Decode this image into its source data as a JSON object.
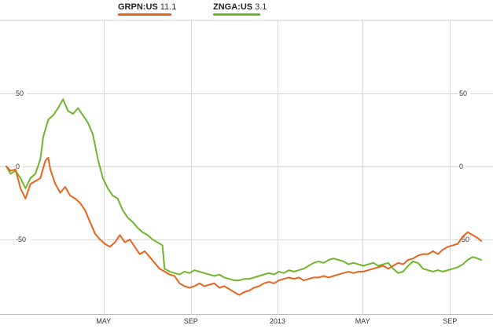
{
  "legend": {
    "items": [
      {
        "ticker": "GRPN:US",
        "value": "11.1",
        "color": "#e8641b"
      },
      {
        "ticker": "ZNGA:US",
        "value": "3.1",
        "color": "#6fb52c"
      }
    ]
  },
  "chart_data": {
    "type": "line",
    "title": "",
    "xlabel": "",
    "ylabel": "",
    "ylim": [
      -100,
      100
    ],
    "y_ticks": [
      50,
      0,
      -50
    ],
    "y_tick_labels": [
      "50",
      "0",
      "-50"
    ],
    "x_range": [
      "2011-12-16",
      "2013-10-15"
    ],
    "x_ticks": [
      "2012-05-01",
      "2012-09-01",
      "2013-01-01",
      "2013-05-01",
      "2013-09-01"
    ],
    "x_tick_labels": [
      "MAY",
      "SEP",
      "2013",
      "MAY",
      "SEP"
    ],
    "grid": true,
    "legend_position": "top-center",
    "series": [
      {
        "name": "GRPN:US",
        "color": "#e8641b",
        "last_value": "11.1",
        "points": [
          [
            "2011-12-16",
            0
          ],
          [
            "2011-12-22",
            -3
          ],
          [
            "2011-12-29",
            -2
          ],
          [
            "2012-01-05",
            -15
          ],
          [
            "2012-01-12",
            -22
          ],
          [
            "2012-01-19",
            -12
          ],
          [
            "2012-01-26",
            -10
          ],
          [
            "2012-02-02",
            -8
          ],
          [
            "2012-02-09",
            4
          ],
          [
            "2012-02-13",
            6
          ],
          [
            "2012-02-16",
            -2
          ],
          [
            "2012-02-23",
            -12
          ],
          [
            "2012-03-01",
            -18
          ],
          [
            "2012-03-08",
            -14
          ],
          [
            "2012-03-15",
            -20
          ],
          [
            "2012-03-22",
            -22
          ],
          [
            "2012-03-29",
            -25
          ],
          [
            "2012-04-05",
            -30
          ],
          [
            "2012-04-12",
            -38
          ],
          [
            "2012-04-19",
            -46
          ],
          [
            "2012-04-26",
            -50
          ],
          [
            "2012-05-03",
            -53
          ],
          [
            "2012-05-10",
            -55
          ],
          [
            "2012-05-17",
            -52
          ],
          [
            "2012-05-24",
            -47
          ],
          [
            "2012-05-31",
            -52
          ],
          [
            "2012-06-07",
            -50
          ],
          [
            "2012-06-14",
            -55
          ],
          [
            "2012-06-21",
            -60
          ],
          [
            "2012-06-28",
            -58
          ],
          [
            "2012-07-05",
            -62
          ],
          [
            "2012-07-12",
            -66
          ],
          [
            "2012-07-19",
            -70
          ],
          [
            "2012-07-26",
            -72
          ],
          [
            "2012-08-02",
            -74
          ],
          [
            "2012-08-09",
            -75
          ],
          [
            "2012-08-16",
            -80
          ],
          [
            "2012-08-23",
            -82
          ],
          [
            "2012-08-30",
            -83
          ],
          [
            "2012-09-06",
            -82
          ],
          [
            "2012-09-13",
            -80
          ],
          [
            "2012-09-20",
            -82
          ],
          [
            "2012-09-27",
            -81
          ],
          [
            "2012-10-04",
            -80
          ],
          [
            "2012-10-11",
            -83
          ],
          [
            "2012-10-18",
            -82
          ],
          [
            "2012-10-25",
            -84
          ],
          [
            "2012-11-01",
            -86
          ],
          [
            "2012-11-08",
            -88
          ],
          [
            "2012-11-15",
            -86
          ],
          [
            "2012-11-22",
            -85
          ],
          [
            "2012-11-29",
            -83
          ],
          [
            "2012-12-06",
            -82
          ],
          [
            "2012-12-13",
            -80
          ],
          [
            "2012-12-20",
            -79
          ],
          [
            "2012-12-27",
            -80
          ],
          [
            "2013-01-03",
            -78
          ],
          [
            "2013-01-10",
            -77
          ],
          [
            "2013-01-17",
            -76
          ],
          [
            "2013-01-24",
            -77
          ],
          [
            "2013-01-31",
            -76
          ],
          [
            "2013-02-07",
            -78
          ],
          [
            "2013-02-14",
            -77
          ],
          [
            "2013-02-21",
            -76
          ],
          [
            "2013-02-28",
            -76
          ],
          [
            "2013-03-07",
            -75
          ],
          [
            "2013-03-14",
            -76
          ],
          [
            "2013-03-21",
            -75
          ],
          [
            "2013-03-28",
            -74
          ],
          [
            "2013-04-04",
            -73
          ],
          [
            "2013-04-11",
            -72
          ],
          [
            "2013-04-18",
            -73
          ],
          [
            "2013-04-25",
            -72
          ],
          [
            "2013-05-02",
            -72
          ],
          [
            "2013-05-09",
            -71
          ],
          [
            "2013-05-16",
            -70
          ],
          [
            "2013-05-23",
            -69
          ],
          [
            "2013-05-30",
            -68
          ],
          [
            "2013-06-06",
            -70
          ],
          [
            "2013-06-13",
            -68
          ],
          [
            "2013-06-20",
            -66
          ],
          [
            "2013-06-27",
            -67
          ],
          [
            "2013-07-04",
            -64
          ],
          [
            "2013-07-11",
            -63
          ],
          [
            "2013-07-18",
            -61
          ],
          [
            "2013-07-25",
            -60
          ],
          [
            "2013-08-01",
            -60
          ],
          [
            "2013-08-08",
            -58
          ],
          [
            "2013-08-15",
            -60
          ],
          [
            "2013-08-22",
            -57
          ],
          [
            "2013-08-29",
            -55
          ],
          [
            "2013-09-05",
            -54
          ],
          [
            "2013-09-12",
            -53
          ],
          [
            "2013-09-19",
            -48
          ],
          [
            "2013-09-26",
            -45
          ],
          [
            "2013-10-03",
            -47
          ],
          [
            "2013-10-10",
            -49
          ],
          [
            "2013-10-15",
            -51
          ]
        ]
      },
      {
        "name": "ZNGA:US",
        "color": "#6fb52c",
        "last_value": "3.1",
        "points": [
          [
            "2011-12-16",
            0
          ],
          [
            "2011-12-22",
            -5
          ],
          [
            "2011-12-29",
            -3
          ],
          [
            "2012-01-05",
            -8
          ],
          [
            "2012-01-12",
            -15
          ],
          [
            "2012-01-19",
            -8
          ],
          [
            "2012-01-26",
            -5
          ],
          [
            "2012-02-02",
            5
          ],
          [
            "2012-02-06",
            20
          ],
          [
            "2012-02-13",
            32
          ],
          [
            "2012-02-20",
            35
          ],
          [
            "2012-02-27",
            40
          ],
          [
            "2012-03-05",
            46
          ],
          [
            "2012-03-12",
            38
          ],
          [
            "2012-03-19",
            36
          ],
          [
            "2012-03-26",
            40
          ],
          [
            "2012-04-02",
            35
          ],
          [
            "2012-04-09",
            30
          ],
          [
            "2012-04-16",
            22
          ],
          [
            "2012-04-23",
            5
          ],
          [
            "2012-04-30",
            -8
          ],
          [
            "2012-05-07",
            -15
          ],
          [
            "2012-05-14",
            -20
          ],
          [
            "2012-05-21",
            -22
          ],
          [
            "2012-05-28",
            -30
          ],
          [
            "2012-06-04",
            -35
          ],
          [
            "2012-06-11",
            -38
          ],
          [
            "2012-06-18",
            -42
          ],
          [
            "2012-06-25",
            -45
          ],
          [
            "2012-07-02",
            -47
          ],
          [
            "2012-07-09",
            -50
          ],
          [
            "2012-07-16",
            -52
          ],
          [
            "2012-07-23",
            -54
          ],
          [
            "2012-07-26",
            -70
          ],
          [
            "2012-08-02",
            -72
          ],
          [
            "2012-08-09",
            -73
          ],
          [
            "2012-08-16",
            -74
          ],
          [
            "2012-08-23",
            -72
          ],
          [
            "2012-08-30",
            -73
          ],
          [
            "2012-09-06",
            -71
          ],
          [
            "2012-09-13",
            -72
          ],
          [
            "2012-09-20",
            -73
          ],
          [
            "2012-09-27",
            -74
          ],
          [
            "2012-10-04",
            -75
          ],
          [
            "2012-10-11",
            -74
          ],
          [
            "2012-10-18",
            -76
          ],
          [
            "2012-10-25",
            -77
          ],
          [
            "2012-11-01",
            -78
          ],
          [
            "2012-11-08",
            -78
          ],
          [
            "2012-11-15",
            -77
          ],
          [
            "2012-11-22",
            -77
          ],
          [
            "2012-11-29",
            -76
          ],
          [
            "2012-12-06",
            -75
          ],
          [
            "2012-12-13",
            -74
          ],
          [
            "2012-12-20",
            -73
          ],
          [
            "2012-12-27",
            -74
          ],
          [
            "2013-01-03",
            -72
          ],
          [
            "2013-01-10",
            -73
          ],
          [
            "2013-01-17",
            -71
          ],
          [
            "2013-01-24",
            -72
          ],
          [
            "2013-01-31",
            -71
          ],
          [
            "2013-02-07",
            -70
          ],
          [
            "2013-02-14",
            -68
          ],
          [
            "2013-02-21",
            -66
          ],
          [
            "2013-02-28",
            -65
          ],
          [
            "2013-03-07",
            -66
          ],
          [
            "2013-03-14",
            -64
          ],
          [
            "2013-03-21",
            -63
          ],
          [
            "2013-03-28",
            -64
          ],
          [
            "2013-04-04",
            -65
          ],
          [
            "2013-04-11",
            -67
          ],
          [
            "2013-04-18",
            -66
          ],
          [
            "2013-04-25",
            -67
          ],
          [
            "2013-05-02",
            -68
          ],
          [
            "2013-05-09",
            -67
          ],
          [
            "2013-05-16",
            -66
          ],
          [
            "2013-05-23",
            -68
          ],
          [
            "2013-05-30",
            -67
          ],
          [
            "2013-06-06",
            -66
          ],
          [
            "2013-06-13",
            -70
          ],
          [
            "2013-06-20",
            -73
          ],
          [
            "2013-06-27",
            -72
          ],
          [
            "2013-07-04",
            -68
          ],
          [
            "2013-07-11",
            -65
          ],
          [
            "2013-07-18",
            -66
          ],
          [
            "2013-07-25",
            -70
          ],
          [
            "2013-08-01",
            -71
          ],
          [
            "2013-08-08",
            -72
          ],
          [
            "2013-08-15",
            -71
          ],
          [
            "2013-08-22",
            -72
          ],
          [
            "2013-08-29",
            -71
          ],
          [
            "2013-09-05",
            -70
          ],
          [
            "2013-09-12",
            -69
          ],
          [
            "2013-09-19",
            -67
          ],
          [
            "2013-09-26",
            -64
          ],
          [
            "2013-10-03",
            -62
          ],
          [
            "2013-10-10",
            -63
          ],
          [
            "2013-10-15",
            -64
          ]
        ]
      }
    ]
  }
}
